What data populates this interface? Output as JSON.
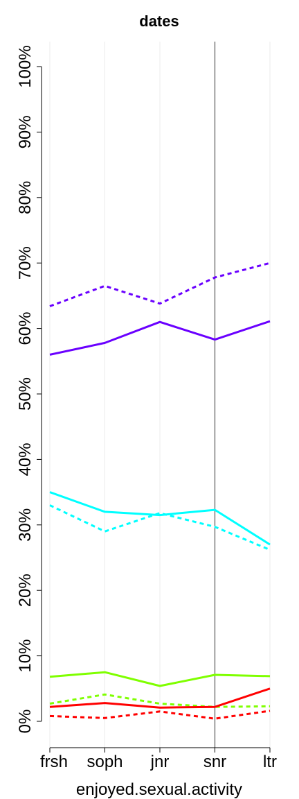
{
  "chart_data": {
    "type": "line",
    "title": "dates",
    "xlabel": "enjoyed.sexual.activity",
    "ylabel": "",
    "categories": [
      "frsh",
      "soph",
      "jnr",
      "snr",
      "ltr"
    ],
    "ylim": [
      0,
      100
    ],
    "yticks": [
      "0%",
      "10%",
      "20%",
      "30%",
      "40%",
      "50%",
      "60%",
      "70%",
      "80%",
      "90%",
      "100%"
    ],
    "grid": "vertical",
    "reference_line_category": "snr",
    "series": [
      {
        "color": "#6A00FF",
        "dash": "solid",
        "values": [
          56.0,
          57.8,
          61.0,
          58.3,
          61.1
        ]
      },
      {
        "color": "#6A00FF",
        "dash": "dotted",
        "values": [
          63.4,
          66.5,
          63.8,
          67.8,
          70.0
        ]
      },
      {
        "color": "#00FFFF",
        "dash": "solid",
        "values": [
          35.0,
          32.0,
          31.5,
          32.3,
          27.0
        ]
      },
      {
        "color": "#00FFFF",
        "dash": "dotted",
        "values": [
          33.0,
          29.0,
          31.8,
          29.7,
          26.2
        ]
      },
      {
        "color": "#7FFF00",
        "dash": "solid",
        "values": [
          6.8,
          7.5,
          5.4,
          7.1,
          6.9
        ]
      },
      {
        "color": "#7FFF00",
        "dash": "dotted",
        "values": [
          2.7,
          4.1,
          2.7,
          2.2,
          2.3
        ]
      },
      {
        "color": "#FF0000",
        "dash": "solid",
        "values": [
          2.2,
          2.8,
          2.1,
          2.2,
          5.0
        ]
      },
      {
        "color": "#FF0000",
        "dash": "dotted",
        "values": [
          0.8,
          0.5,
          1.5,
          0.4,
          1.6
        ]
      }
    ]
  }
}
